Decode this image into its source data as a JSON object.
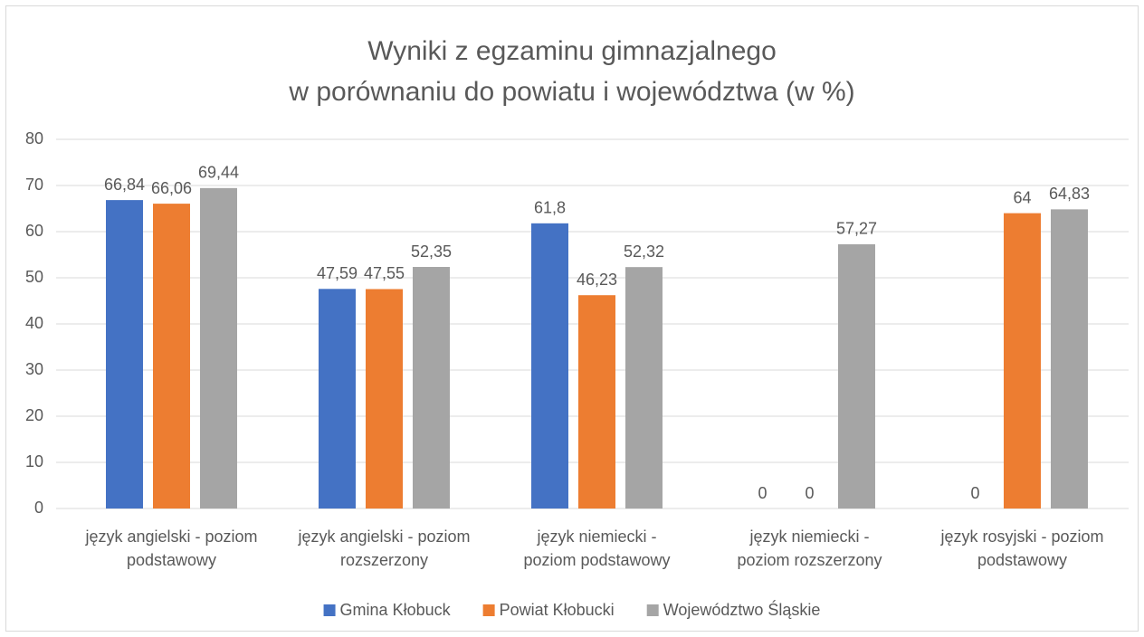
{
  "chart_data": {
    "type": "bar",
    "title": [
      "Wyniki z egzaminu gimnazjalnego",
      "w porównaniu do powiatu i województwa (w %)"
    ],
    "categories": [
      [
        "język angielski - poziom",
        "podstawowy"
      ],
      [
        "język angielski - poziom",
        "rozszerzony"
      ],
      [
        "język niemiecki -",
        "poziom podstawowy"
      ],
      [
        "język niemiecki -",
        "poziom rozszerzony"
      ],
      [
        "język rosyjski - poziom",
        "podstawowy"
      ]
    ],
    "series": [
      {
        "name": "Gmina Kłobuck",
        "color": "#4472c4",
        "values": [
          66.84,
          47.59,
          61.8,
          0,
          0
        ],
        "value_labels": [
          "66,84",
          "47,59",
          "61,8",
          "0",
          "0"
        ]
      },
      {
        "name": "Powiat Kłobucki",
        "color": "#ed7d31",
        "values": [
          66.06,
          47.55,
          46.23,
          0,
          64
        ],
        "value_labels": [
          "66,06",
          "47,55",
          "46,23",
          "0",
          "64"
        ]
      },
      {
        "name": "Województwo Śląskie",
        "color": "#a5a5a5",
        "values": [
          69.44,
          52.35,
          52.32,
          57.27,
          64.83
        ],
        "value_labels": [
          "69,44",
          "52,35",
          "52,32",
          "57,27",
          "64,83"
        ]
      }
    ],
    "ylim": [
      0,
      80
    ],
    "yticks": [
      0,
      10,
      20,
      30,
      40,
      50,
      60,
      70,
      80
    ],
    "grid": true,
    "legend": "bottom"
  }
}
